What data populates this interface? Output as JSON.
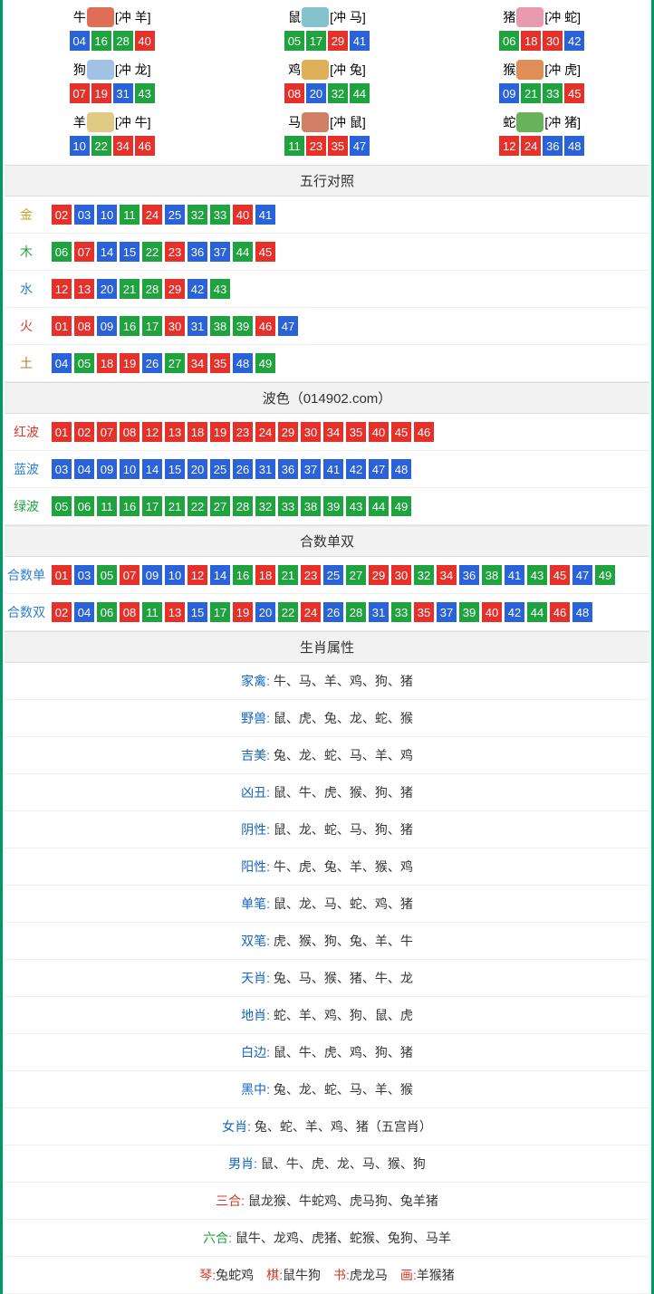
{
  "colors": {
    "red": "#e6302a",
    "blue": "#2962d9",
    "green": "#1fa33e",
    "gold": "#c9a227",
    "wood": "#1fa33e",
    "water": "#2f7fd1",
    "fire": "#d43a2a",
    "earth": "#b07b2a",
    "label_red": "#d43a2a",
    "label_blue": "#2f7fd1",
    "label_green": "#1fa33e",
    "attr_label": "#1565c0",
    "three_label": "#d43a2a",
    "six_label": "#1fa33e",
    "qin_label": "#d43a2a"
  },
  "ballColorMap": {
    "01": "red",
    "02": "red",
    "07": "red",
    "08": "red",
    "12": "red",
    "13": "red",
    "18": "red",
    "19": "red",
    "23": "red",
    "24": "red",
    "29": "red",
    "30": "red",
    "34": "red",
    "35": "red",
    "40": "red",
    "45": "red",
    "46": "red",
    "03": "blue",
    "04": "blue",
    "09": "blue",
    "10": "blue",
    "14": "blue",
    "15": "blue",
    "20": "blue",
    "25": "blue",
    "26": "blue",
    "31": "blue",
    "36": "blue",
    "37": "blue",
    "41": "blue",
    "42": "blue",
    "47": "blue",
    "48": "blue",
    "05": "green",
    "06": "green",
    "11": "green",
    "16": "green",
    "17": "green",
    "21": "green",
    "22": "green",
    "27": "green",
    "28": "green",
    "32": "green",
    "33": "green",
    "38": "green",
    "39": "green",
    "43": "green",
    "44": "green",
    "49": "green"
  },
  "zodiac": [
    {
      "name": "牛",
      "icon_color": "#d9553a",
      "conflict": "[冲 羊]",
      "balls": [
        "04",
        "16",
        "28",
        "40"
      ]
    },
    {
      "name": "鼠",
      "icon_color": "#6fb7c6",
      "conflict": "[冲 马]",
      "balls": [
        "05",
        "17",
        "29",
        "41"
      ]
    },
    {
      "name": "猪",
      "icon_color": "#e48aa0",
      "conflict": "[冲 蛇]",
      "balls": [
        "06",
        "18",
        "30",
        "42"
      ]
    },
    {
      "name": "狗",
      "icon_color": "#8fb8e0",
      "conflict": "[冲 龙]",
      "balls": [
        "07",
        "19",
        "31",
        "43"
      ]
    },
    {
      "name": "鸡",
      "icon_color": "#d9a23a",
      "conflict": "[冲 兔]",
      "balls": [
        "08",
        "20",
        "32",
        "44"
      ]
    },
    {
      "name": "猴",
      "icon_color": "#d97a3a",
      "conflict": "[冲 虎]",
      "balls": [
        "09",
        "21",
        "33",
        "45"
      ]
    },
    {
      "name": "羊",
      "icon_color": "#d9c26f",
      "conflict": "[冲 牛]",
      "balls": [
        "10",
        "22",
        "34",
        "46"
      ]
    },
    {
      "name": "马",
      "icon_color": "#c96a4a",
      "conflict": "[冲 鼠]",
      "balls": [
        "11",
        "23",
        "35",
        "47"
      ]
    },
    {
      "name": "蛇",
      "icon_color": "#4fa33e",
      "conflict": "[冲 猪]",
      "balls": [
        "12",
        "24",
        "36",
        "48"
      ]
    }
  ],
  "sections": {
    "wuxing": {
      "title": "五行对照",
      "rows": [
        {
          "label": "金",
          "label_color": "gold",
          "balls": [
            "02",
            "03",
            "10",
            "11",
            "24",
            "25",
            "32",
            "33",
            "40",
            "41"
          ]
        },
        {
          "label": "木",
          "label_color": "wood",
          "balls": [
            "06",
            "07",
            "14",
            "15",
            "22",
            "23",
            "36",
            "37",
            "44",
            "45"
          ]
        },
        {
          "label": "水",
          "label_color": "water",
          "balls": [
            "12",
            "13",
            "20",
            "21",
            "28",
            "29",
            "42",
            "43"
          ]
        },
        {
          "label": "火",
          "label_color": "fire",
          "balls": [
            "01",
            "08",
            "09",
            "16",
            "17",
            "30",
            "31",
            "38",
            "39",
            "46",
            "47"
          ]
        },
        {
          "label": "土",
          "label_color": "earth",
          "balls": [
            "04",
            "05",
            "18",
            "19",
            "26",
            "27",
            "34",
            "35",
            "48",
            "49"
          ]
        }
      ]
    },
    "bose": {
      "title": "波色（014902.com）",
      "rows": [
        {
          "label": "红波",
          "label_color": "label_red",
          "balls": [
            "01",
            "02",
            "07",
            "08",
            "12",
            "13",
            "18",
            "19",
            "23",
            "24",
            "29",
            "30",
            "34",
            "35",
            "40",
            "45",
            "46"
          ]
        },
        {
          "label": "蓝波",
          "label_color": "label_blue",
          "balls": [
            "03",
            "04",
            "09",
            "10",
            "14",
            "15",
            "20",
            "25",
            "26",
            "31",
            "36",
            "37",
            "41",
            "42",
            "47",
            "48"
          ]
        },
        {
          "label": "绿波",
          "label_color": "label_green",
          "balls": [
            "05",
            "06",
            "11",
            "16",
            "17",
            "21",
            "22",
            "27",
            "28",
            "32",
            "33",
            "38",
            "39",
            "43",
            "44",
            "49"
          ]
        }
      ]
    },
    "heshu": {
      "title": "合数单双",
      "rows": [
        {
          "label": "合数单",
          "label_color": "label_blue",
          "balls": [
            "01",
            "03",
            "05",
            "07",
            "09",
            "10",
            "12",
            "14",
            "16",
            "18",
            "21",
            "23",
            "25",
            "27",
            "29",
            "30",
            "32",
            "34",
            "36",
            "38",
            "41",
            "43",
            "45",
            "47",
            "49"
          ]
        },
        {
          "label": "合数双",
          "label_color": "label_blue",
          "balls": [
            "02",
            "04",
            "06",
            "08",
            "11",
            "13",
            "15",
            "17",
            "19",
            "20",
            "22",
            "24",
            "26",
            "28",
            "31",
            "33",
            "35",
            "37",
            "39",
            "40",
            "42",
            "44",
            "46",
            "48"
          ]
        }
      ]
    },
    "attrs": {
      "title": "生肖属性",
      "rows": [
        {
          "label": "家禽:",
          "label_color": "attr_label",
          "value": " 牛、马、羊、鸡、狗、猪"
        },
        {
          "label": "野兽:",
          "label_color": "attr_label",
          "value": " 鼠、虎、兔、龙、蛇、猴"
        },
        {
          "label": "吉美:",
          "label_color": "attr_label",
          "value": " 兔、龙、蛇、马、羊、鸡"
        },
        {
          "label": "凶丑:",
          "label_color": "attr_label",
          "value": " 鼠、牛、虎、猴、狗、猪"
        },
        {
          "label": "阴性:",
          "label_color": "attr_label",
          "value": " 鼠、龙、蛇、马、狗、猪"
        },
        {
          "label": "阳性:",
          "label_color": "attr_label",
          "value": " 牛、虎、兔、羊、猴、鸡"
        },
        {
          "label": "单笔:",
          "label_color": "attr_label",
          "value": " 鼠、龙、马、蛇、鸡、猪"
        },
        {
          "label": "双笔:",
          "label_color": "attr_label",
          "value": " 虎、猴、狗、兔、羊、牛"
        },
        {
          "label": "天肖:",
          "label_color": "attr_label",
          "value": " 兔、马、猴、猪、牛、龙"
        },
        {
          "label": "地肖:",
          "label_color": "attr_label",
          "value": " 蛇、羊、鸡、狗、鼠、虎"
        },
        {
          "label": "白边:",
          "label_color": "attr_label",
          "value": " 鼠、牛、虎、鸡、狗、猪"
        },
        {
          "label": "黑中:",
          "label_color": "attr_label",
          "value": " 兔、龙、蛇、马、羊、猴"
        },
        {
          "label": "女肖: ",
          "label_color": "attr_label",
          "value": "兔、蛇、羊、鸡、猪（五宫肖）"
        },
        {
          "label": "男肖: ",
          "label_color": "attr_label",
          "value": "鼠、牛、虎、龙、马、猴、狗"
        },
        {
          "label": "三合: ",
          "label_color": "three_label",
          "value": "鼠龙猴、牛蛇鸡、虎马狗、兔羊猪"
        },
        {
          "label": "六合: ",
          "label_color": "six_label",
          "value": "鼠牛、龙鸡、虎猪、蛇猴、兔狗、马羊"
        }
      ],
      "qin_row": {
        "parts": [
          {
            "label": "琴:",
            "label_color": "qin_label",
            "value": "兔蛇鸡　"
          },
          {
            "label": "棋:",
            "label_color": "qin_label",
            "value": "鼠牛狗　"
          },
          {
            "label": "书:",
            "label_color": "qin_label",
            "value": "虎龙马　"
          },
          {
            "label": "画:",
            "label_color": "qin_label",
            "value": "羊猴猪"
          }
        ]
      }
    }
  }
}
